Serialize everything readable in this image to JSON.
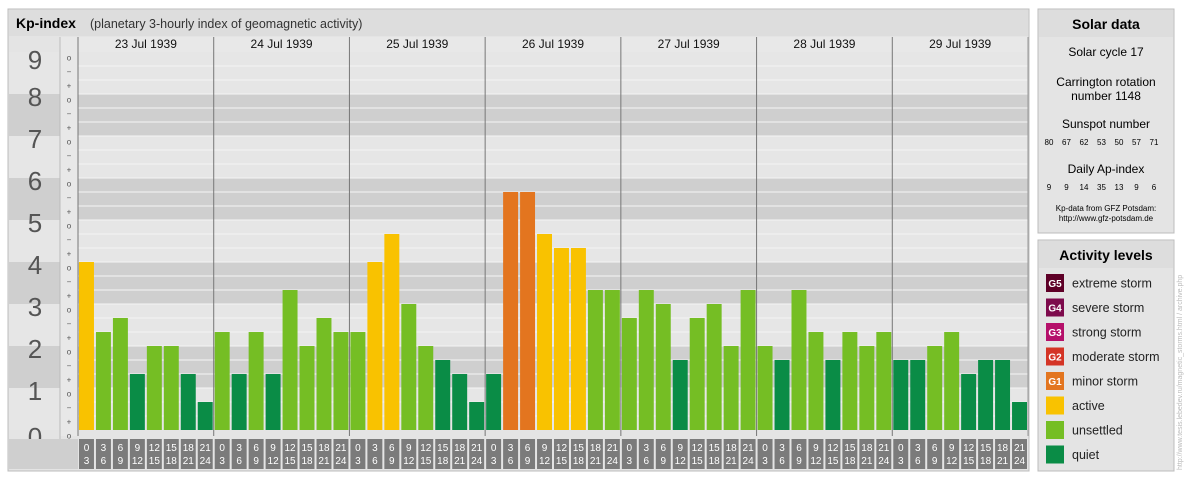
{
  "chart_data": {
    "type": "bar",
    "title": "Kp-index",
    "subtitle": "(planetary 3-hourly index of geomagnetic activity)",
    "ylim": [
      0,
      9
    ],
    "y_ticks": [
      "0",
      "1",
      "2",
      "3",
      "4",
      "5",
      "6",
      "7",
      "8",
      "9"
    ],
    "sub_ticks": [
      "o",
      "+",
      "−",
      "o",
      "+",
      "−",
      "o",
      "+",
      "−",
      "o",
      "+",
      "−",
      "o",
      "+",
      "−",
      "o",
      "+",
      "−",
      "o",
      "+",
      "−",
      "o",
      "+",
      "−",
      "o",
      "+",
      "−",
      "o"
    ],
    "days": [
      "23 Jul 1939",
      "24 Jul 1939",
      "25 Jul 1939",
      "26 Jul 1939",
      "27 Jul 1939",
      "28 Jul 1939",
      "29 Jul 1939"
    ],
    "interval_start": [
      "0",
      "3",
      "6",
      "9",
      "12",
      "15",
      "18",
      "21"
    ],
    "interval_end": [
      "3",
      "6",
      "9",
      "12",
      "15",
      "18",
      "21",
      "24"
    ],
    "values": [
      [
        4.0,
        2.333,
        2.667,
        1.333,
        2.0,
        2.0,
        1.333,
        0.667
      ],
      [
        2.333,
        1.333,
        2.333,
        1.333,
        3.333,
        2.0,
        2.667,
        2.333
      ],
      [
        2.333,
        4.0,
        4.667,
        3.0,
        2.0,
        1.667,
        1.333,
        0.667
      ],
      [
        1.333,
        5.667,
        5.667,
        4.667,
        4.333,
        4.333,
        3.333,
        3.333
      ],
      [
        2.667,
        3.333,
        3.0,
        1.667,
        2.667,
        3.0,
        2.0,
        3.333
      ],
      [
        2.0,
        1.667,
        3.333,
        2.333,
        1.667,
        2.333,
        2.0,
        2.333
      ],
      [
        1.667,
        1.667,
        2.0,
        2.333,
        1.333,
        1.667,
        1.667,
        0.667
      ]
    ]
  },
  "solar": {
    "title": "Solar data",
    "cycle": "Solar cycle 17",
    "carrington_line1": "Carrington rotation",
    "carrington_line2": "number 1148",
    "sunspot_title": "Sunspot number",
    "sunspot_values": [
      "80",
      "67",
      "62",
      "53",
      "50",
      "57",
      "71"
    ],
    "ap_title": "Daily Ap-index",
    "ap_values": [
      "9",
      "9",
      "14",
      "35",
      "13",
      "9",
      "6"
    ],
    "source_line1": "Kp-data from GFZ Potsdam:",
    "source_line2": "http://www.gfz-potsdam.de"
  },
  "activity": {
    "title": "Activity levels",
    "levels": [
      {
        "badge": "G5",
        "label": "extreme storm",
        "color": "#5e0027"
      },
      {
        "badge": "G4",
        "label": "severe storm",
        "color": "#7d0a4c"
      },
      {
        "badge": "G3",
        "label": "strong storm",
        "color": "#b5106a"
      },
      {
        "badge": "G2",
        "label": "moderate storm",
        "color": "#d43425"
      },
      {
        "badge": "G1",
        "label": "minor storm",
        "color": "#e3751f"
      },
      {
        "badge": "",
        "label": "active",
        "color": "#f9c200"
      },
      {
        "badge": "",
        "label": "unsettled",
        "color": "#75be24"
      },
      {
        "badge": "",
        "label": "quiet",
        "color": "#0a8c46"
      }
    ]
  },
  "watermark": "http://www.tesis.lebedev.ru/magnetic_storms.html / archive.php"
}
